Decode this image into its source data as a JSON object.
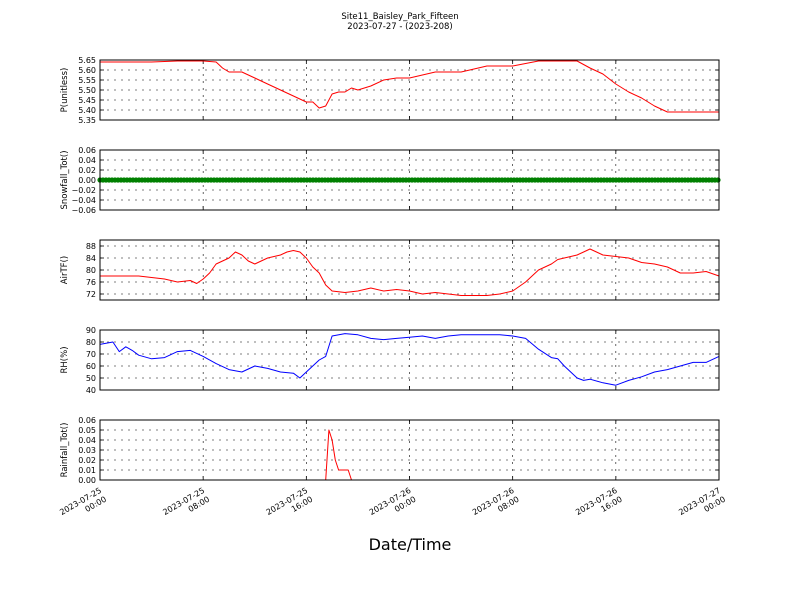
{
  "figure": {
    "title_line1": "Site11_Baisley_Park_Fifteen",
    "title_line2": "2023-07-27 - (2023-208)",
    "xlabel": "Date/Time"
  },
  "chart_data": [
    {
      "type": "line",
      "ylabel": "P(unitless)",
      "ylim": [
        5.35,
        5.65
      ],
      "yticks": [
        5.35,
        5.4,
        5.45,
        5.5,
        5.55,
        5.6,
        5.65
      ],
      "ytick_labels": [
        "5.35",
        "5.40",
        "5.45",
        "5.50",
        "5.55",
        "5.60",
        "5.65"
      ],
      "grid": true,
      "color": "#ff0000",
      "x_hours": [
        0,
        2,
        4,
        6,
        8,
        9,
        9.5,
        10,
        11,
        12,
        13,
        14,
        15,
        16,
        16.5,
        17,
        17.5,
        18,
        18.5,
        19,
        19.5,
        20,
        21,
        22,
        23,
        24,
        26,
        28,
        30,
        31,
        32,
        34,
        35,
        36,
        37,
        38,
        39,
        40,
        41,
        42,
        43,
        44,
        45,
        46,
        48
      ],
      "y": [
        5.64,
        5.64,
        5.64,
        5.645,
        5.645,
        5.64,
        5.61,
        5.59,
        5.59,
        5.56,
        5.53,
        5.5,
        5.47,
        5.44,
        5.44,
        5.41,
        5.42,
        5.48,
        5.49,
        5.49,
        5.51,
        5.5,
        5.52,
        5.55,
        5.56,
        5.56,
        5.59,
        5.59,
        5.62,
        5.62,
        5.62,
        5.645,
        5.645,
        5.645,
        5.645,
        5.61,
        5.58,
        5.53,
        5.49,
        5.46,
        5.42,
        5.39,
        5.39,
        5.39,
        5.39
      ]
    },
    {
      "type": "line",
      "ylabel": "Snowfall_Tot()",
      "ylim": [
        -0.06,
        0.06
      ],
      "yticks": [
        -0.06,
        -0.04,
        -0.02,
        0.0,
        0.02,
        0.04,
        0.06
      ],
      "ytick_labels": [
        "−0.06",
        "−0.04",
        "−0.02",
        "0.00",
        "0.02",
        "0.04",
        "0.06"
      ],
      "grid": true,
      "color": "#008000",
      "marker": "circle",
      "x_hours": [
        0,
        48
      ],
      "y": [
        0,
        0
      ]
    },
    {
      "type": "line",
      "ylabel": "AirTF()",
      "ylim": [
        70,
        90
      ],
      "yticks": [
        72,
        76,
        80,
        84,
        88
      ],
      "ytick_labels": [
        "72",
        "76",
        "80",
        "84",
        "88"
      ],
      "grid": true,
      "color": "#ff0000",
      "x_hours": [
        0,
        1,
        2,
        3,
        4,
        5,
        6,
        7,
        7.5,
        8,
        8.5,
        9,
        10,
        10.5,
        11,
        11.5,
        12,
        13,
        14,
        14.5,
        15,
        15.5,
        16,
        16.5,
        17,
        17.5,
        18,
        19,
        20,
        21,
        22,
        23,
        24,
        25,
        26,
        27,
        28,
        29,
        30,
        31,
        32,
        33,
        34,
        35,
        35.5,
        36,
        37,
        37.5,
        38,
        38.5,
        39,
        40,
        41,
        42,
        43,
        44,
        45,
        46,
        47,
        48
      ],
      "y": [
        78,
        78,
        78,
        78,
        77.5,
        77,
        76,
        76.5,
        75.5,
        77,
        79,
        82,
        84,
        86,
        85,
        83,
        82,
        84,
        85,
        86,
        86.5,
        86,
        84,
        81,
        79,
        75,
        73,
        72.5,
        73,
        74,
        73,
        73.5,
        73,
        72,
        72.5,
        72,
        71.5,
        71.5,
        71.5,
        72,
        73,
        76,
        80,
        82,
        83.5,
        84,
        85,
        86,
        87,
        86,
        85,
        84.5,
        84,
        82.5,
        82,
        81,
        79,
        79,
        79.5,
        78
      ]
    },
    {
      "type": "line",
      "ylabel": "RH(%)",
      "ylim": [
        40,
        90
      ],
      "yticks": [
        40,
        50,
        60,
        70,
        80,
        90
      ],
      "ytick_labels": [
        "40",
        "50",
        "60",
        "70",
        "80",
        "90"
      ],
      "grid": true,
      "color": "#0000ff",
      "x_hours": [
        0,
        1,
        1.5,
        2,
        2.5,
        3,
        4,
        5,
        6,
        7,
        8,
        9,
        10,
        11,
        12,
        13,
        14,
        15,
        15.5,
        16,
        17,
        17.5,
        18,
        19,
        20,
        21,
        22,
        23,
        24,
        25,
        26,
        27,
        28,
        29,
        30,
        31,
        32,
        33,
        34,
        35,
        35.5,
        36,
        36.5,
        37,
        37.5,
        38,
        39,
        40,
        41,
        42,
        43,
        44,
        45,
        46,
        47,
        48
      ],
      "y": [
        78,
        80,
        72,
        76,
        73,
        69,
        66,
        67,
        72,
        73,
        68,
        62,
        57,
        55,
        60,
        58,
        55,
        54,
        50,
        55,
        65,
        68,
        85,
        87,
        86,
        83,
        82,
        83,
        84,
        85,
        83,
        85,
        86,
        86,
        86,
        86,
        85,
        83,
        74,
        67,
        66,
        60,
        55,
        50,
        48,
        49,
        46,
        44,
        48,
        51,
        55,
        57,
        60,
        63,
        63,
        68
      ]
    },
    {
      "type": "line",
      "ylabel": "Rainfall_Tot()",
      "ylim": [
        0,
        0.06
      ],
      "yticks": [
        0.0,
        0.01,
        0.02,
        0.03,
        0.04,
        0.05,
        0.06
      ],
      "ytick_labels": [
        "0.00",
        "0.01",
        "0.02",
        "0.03",
        "0.04",
        "0.05",
        "0.06"
      ],
      "grid": true,
      "color": "#ff0000",
      "x_hours": [
        0,
        17.5,
        17.75,
        18,
        18.25,
        18.5,
        19,
        19.25,
        19.5,
        48
      ],
      "y": [
        0,
        0,
        0.05,
        0.04,
        0.02,
        0.01,
        0.01,
        0.01,
        0,
        0
      ]
    }
  ],
  "x_axis": {
    "range_hours": [
      0,
      48
    ],
    "ticks_hours": [
      0,
      8,
      16,
      24,
      32,
      40,
      48
    ],
    "tick_labels": [
      [
        "2023-07-25",
        "00:00"
      ],
      [
        "2023-07-25",
        "08:00"
      ],
      [
        "2023-07-25",
        "16:00"
      ],
      [
        "2023-07-26",
        "00:00"
      ],
      [
        "2023-07-26",
        "08:00"
      ],
      [
        "2023-07-26",
        "16:00"
      ],
      [
        "2023-07-27",
        "00:00"
      ]
    ]
  }
}
